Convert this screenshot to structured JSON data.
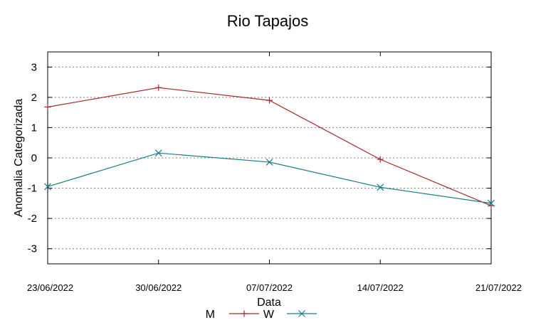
{
  "chart_data": {
    "type": "line",
    "title": "Rio Tapajos",
    "xlabel": "Data",
    "ylabel": "Anomalia Categorizada",
    "categories": [
      "23/06/2022",
      "30/06/2022",
      "07/07/2022",
      "14/07/2022",
      "21/07/2022"
    ],
    "yticks": [
      3,
      2,
      1,
      0,
      -1,
      -2,
      -3
    ],
    "ylim": [
      -3.5,
      3.5
    ],
    "grid": "horizontal",
    "legend_position": "bottom-center",
    "series": [
      {
        "name": "M",
        "color": "#a52a2a",
        "marker": "plus",
        "values": [
          1.68,
          2.32,
          1.9,
          -0.05,
          -1.58
        ]
      },
      {
        "name": "W",
        "color": "#1a7d82",
        "marker": "x",
        "values": [
          -0.95,
          0.16,
          -0.14,
          -0.97,
          -1.5
        ]
      }
    ]
  }
}
